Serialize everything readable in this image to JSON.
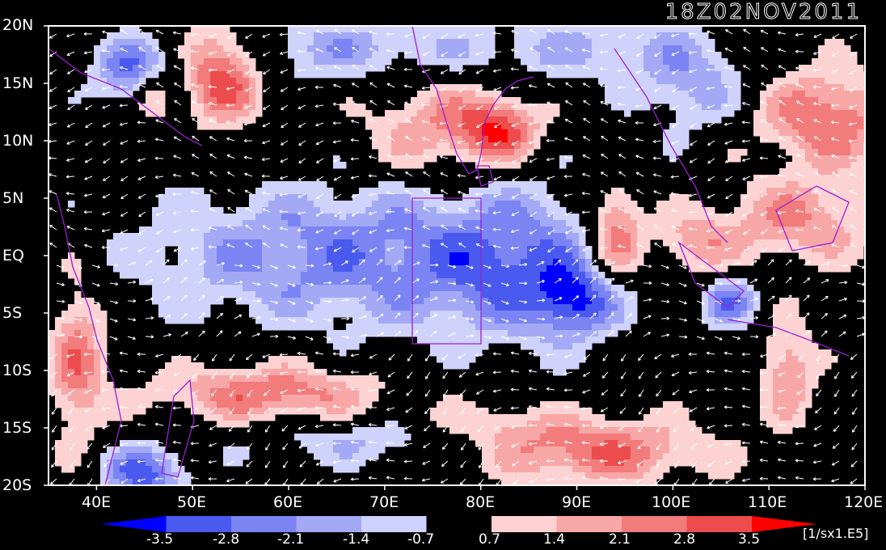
{
  "title": "18Z02NOV2011",
  "units": "[1/sx1.E5]",
  "lat_labels": [
    "20N",
    "15N",
    "10N",
    "5N",
    "EQ",
    "5S",
    "10S",
    "15S",
    "20S"
  ],
  "lon_labels": [
    "40E",
    "50E",
    "60E",
    "70E",
    "80E",
    "90E",
    "100E",
    "110E",
    "120E"
  ],
  "colorbar": {
    "labels": [
      "-3.5",
      "-2.8",
      "-2.1",
      "-1.4",
      "-0.7",
      "0.7",
      "1.4",
      "2.1",
      "2.8",
      "3.5"
    ],
    "colors": [
      "#0000ff",
      "#4a5aee",
      "#7a84f2",
      "#a4a9f6",
      "#cfd2fb",
      "#000000",
      "#fcd2d2",
      "#f8a7a7",
      "#f27b7b",
      "#ec4c4c",
      "#ff0000"
    ]
  },
  "colors": {
    "coast": "#9a1fd0",
    "frame": "#ffffff",
    "vector": "#ffffff",
    "background": "#000000"
  },
  "field_extent": {
    "lon": [
      35,
      120
    ],
    "lat": [
      -20,
      20
    ]
  },
  "field_blobs": [
    {
      "lon": 53,
      "lat": 16,
      "v": 3.6,
      "sx": 3,
      "sy": 3
    },
    {
      "lon": 44,
      "lat": 16,
      "v": -2.8,
      "sx": 3,
      "sy": 2
    },
    {
      "lon": 46,
      "lat": 14,
      "v": 2.4,
      "sx": 1.4,
      "sy": 1.5
    },
    {
      "lon": 75,
      "lat": 11,
      "v": 2.0,
      "sx": 5,
      "sy": 3
    },
    {
      "lon": 82,
      "lat": 11,
      "v": 3.0,
      "sx": 3,
      "sy": 2
    },
    {
      "lon": 116,
      "lat": 12,
      "v": 2.8,
      "sx": 5,
      "sy": 3
    },
    {
      "lon": 113,
      "lat": 3,
      "v": 2.1,
      "sx": 6,
      "sy": 2.5
    },
    {
      "lon": 94,
      "lat": 2,
      "v": 3.2,
      "sx": 2,
      "sy": 3
    },
    {
      "lon": 102,
      "lat": 1,
      "v": 1.8,
      "sx": 3,
      "sy": 2
    },
    {
      "lon": 60,
      "lat": 0,
      "v": -1.8,
      "sx": 12,
      "sy": 4
    },
    {
      "lon": 84,
      "lat": -1,
      "v": -2.3,
      "sx": 7,
      "sy": 4.5
    },
    {
      "lon": 90,
      "lat": -4,
      "v": -2.6,
      "sx": 3,
      "sy": 2
    },
    {
      "lon": 106,
      "lat": -4,
      "v": -2.6,
      "sx": 2,
      "sy": 1.5
    },
    {
      "lon": 73,
      "lat": 0,
      "v": -1.0,
      "sx": 12,
      "sy": 5
    },
    {
      "lon": 58,
      "lat": -12,
      "v": 2.7,
      "sx": 8,
      "sy": 1.8
    },
    {
      "lon": 38,
      "lat": -9,
      "v": 2.5,
      "sx": 2,
      "sy": 5
    },
    {
      "lon": 92,
      "lat": -17,
      "v": 2.8,
      "sx": 8,
      "sy": 2
    },
    {
      "lon": 80,
      "lat": -15,
      "v": 1.5,
      "sx": 6,
      "sy": 1.5
    },
    {
      "lon": 70,
      "lat": -16,
      "v": -1.6,
      "sx": 10,
      "sy": 1.5
    },
    {
      "lon": 45,
      "lat": -19,
      "v": -3.2,
      "sx": 3,
      "sy": 1.6
    },
    {
      "lon": 112,
      "lat": -10,
      "v": 2.2,
      "sx": 2,
      "sy": 3
    },
    {
      "lon": 65,
      "lat": 18,
      "v": -1.7,
      "sx": 10,
      "sy": 2
    },
    {
      "lon": 90,
      "lat": 18,
      "v": -1.4,
      "sx": 8,
      "sy": 2
    },
    {
      "lon": 102,
      "lat": 15,
      "v": -1.8,
      "sx": 4,
      "sy": 3
    }
  ]
}
